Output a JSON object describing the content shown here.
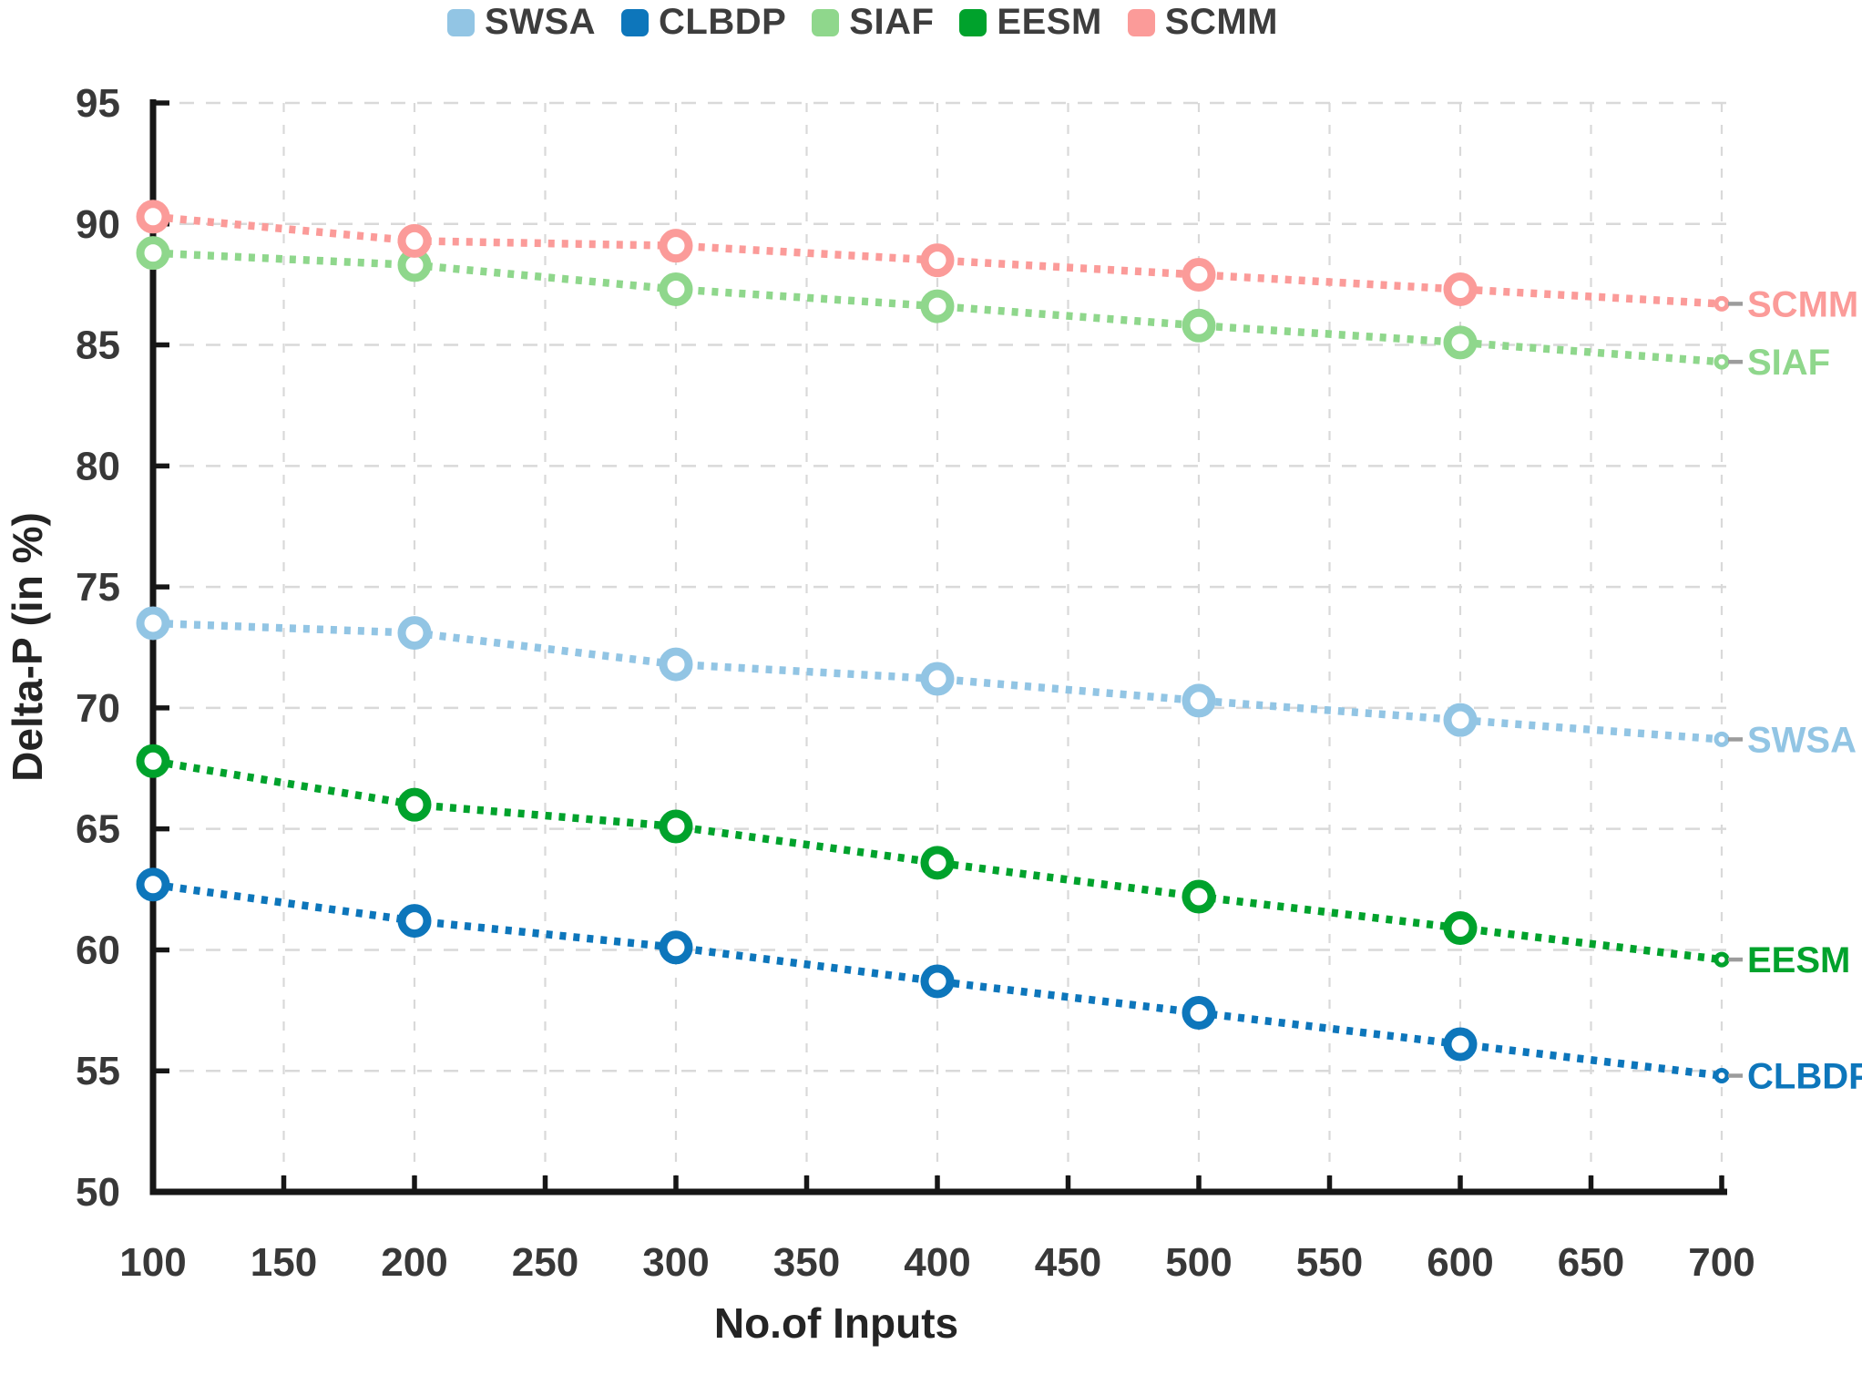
{
  "chart_data": {
    "type": "line",
    "title": "",
    "xlabel": "No.of Inputs",
    "ylabel": "Delta-P (in %)",
    "x": [
      100,
      200,
      300,
      400,
      500,
      600,
      700
    ],
    "xlim": [
      100,
      700
    ],
    "ylim": [
      50,
      95
    ],
    "xtick_step": 50,
    "ytick_step": 5,
    "grid": "dashed",
    "line_style": "dotted",
    "marker": "open-circle",
    "legend_position": "top",
    "end_labels": true,
    "series": [
      {
        "name": "SWSA",
        "color": "#92c5e4",
        "values": [
          73.5,
          73.1,
          71.8,
          71.2,
          70.3,
          69.5,
          68.7
        ]
      },
      {
        "name": "CLBDP",
        "color": "#0d76bb",
        "values": [
          62.7,
          61.2,
          60.1,
          58.7,
          57.4,
          56.1,
          54.8
        ]
      },
      {
        "name": "SIAF",
        "color": "#8fd78c",
        "values": [
          88.8,
          88.3,
          87.3,
          86.6,
          85.8,
          85.1,
          84.3
        ]
      },
      {
        "name": "EESM",
        "color": "#00a22c",
        "values": [
          67.8,
          66.0,
          65.1,
          63.6,
          62.2,
          60.9,
          59.6
        ]
      },
      {
        "name": "SCMM",
        "color": "#fb9b99",
        "values": [
          90.3,
          89.3,
          89.1,
          88.5,
          87.9,
          87.3,
          86.7
        ]
      }
    ]
  },
  "style_colors": {
    "axis": "#161616",
    "tick_label": "#383838",
    "grid": "#d9d9d9",
    "leader_dash": "#9c9c9c",
    "marker_fill": "#ffffff"
  }
}
